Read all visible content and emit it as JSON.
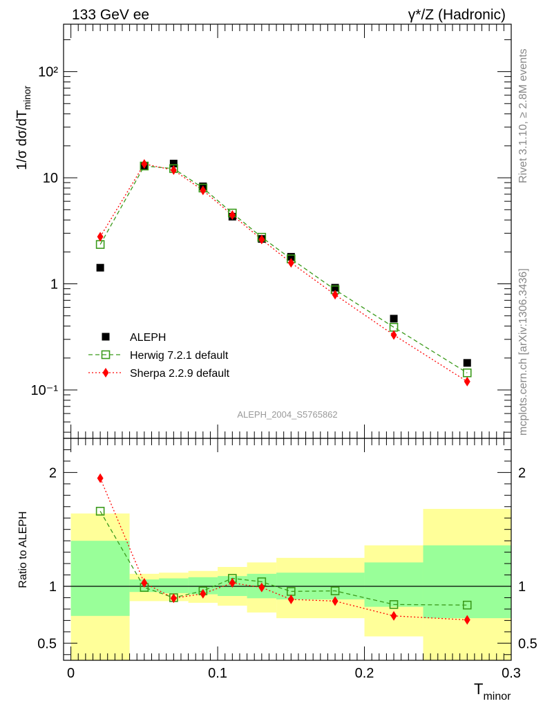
{
  "header": {
    "left": "133 GeV ee",
    "right": "γ*/Z (Hadronic)"
  },
  "side_text": {
    "rivet": "Rivet 3.1.10, ≥ 2.8M events",
    "mcplots": "mcplots.cern.ch [arXiv:1306.3436]"
  },
  "watermark": "ALEPH_2004_S5765862",
  "colors": {
    "data": "#000000",
    "herwig": "#3a9a1a",
    "sherpa": "#ff0000",
    "band_inner": "#99ff99",
    "band_outer": "#ffff99"
  },
  "chart_data": [
    {
      "type": "scatter",
      "panel": "main",
      "ylabel": "1/σ dσ/dT_minor",
      "yscale": "log",
      "ylim": [
        0.035,
        280
      ],
      "xlim": [
        -0.005,
        0.3
      ],
      "ytick_labels": [
        "10⁻¹",
        "1",
        "10",
        "10²"
      ],
      "legend_position": "bottom-left",
      "x": [
        0.02,
        0.05,
        0.07,
        0.09,
        0.11,
        0.13,
        0.15,
        0.18,
        0.22,
        0.27
      ],
      "series": [
        {
          "name": "ALEPH",
          "key": "data",
          "values": [
            1.42,
            13.0,
            13.6,
            8.3,
            4.3,
            2.65,
            1.8,
            0.92,
            0.47,
            0.18
          ]
        },
        {
          "name": "Herwig 7.2.1 default",
          "key": "herwig",
          "values": [
            2.35,
            12.9,
            12.2,
            8.0,
            4.65,
            2.75,
            1.72,
            0.88,
            0.39,
            0.145
          ]
        },
        {
          "name": "Sherpa 2.2.9 default",
          "key": "sherpa",
          "values": [
            2.78,
            13.5,
            11.8,
            7.6,
            4.45,
            2.62,
            1.58,
            0.79,
            0.33,
            0.12
          ]
        }
      ]
    },
    {
      "type": "line",
      "panel": "ratio",
      "ylabel": "Ratio to ALEPH",
      "xlabel": "T_minor",
      "ylim": [
        0.35,
        2.3
      ],
      "xlim": [
        -0.005,
        0.3
      ],
      "xtick_labels": [
        "0",
        "0.1",
        "0.2",
        "0.3"
      ],
      "ytick_labels": [
        "0.5",
        "1",
        "2"
      ],
      "x": [
        0.02,
        0.05,
        0.07,
        0.09,
        0.11,
        0.13,
        0.15,
        0.18,
        0.22,
        0.27
      ],
      "series": [
        {
          "key": "herwig",
          "values": [
            1.66,
            0.99,
            0.9,
            0.96,
            1.07,
            1.04,
            0.955,
            0.96,
            0.84,
            0.835
          ]
        },
        {
          "key": "sherpa",
          "values": [
            1.95,
            1.03,
            0.895,
            0.935,
            1.03,
            0.99,
            0.885,
            0.87,
            0.74,
            0.705
          ]
        }
      ],
      "bands": [
        {
          "x0": 0.0,
          "x1": 0.04,
          "inner": [
            0.74,
            1.4
          ],
          "outer": [
            0.35,
            1.64
          ]
        },
        {
          "x0": 0.04,
          "x1": 0.06,
          "inner": [
            0.95,
            1.06
          ],
          "outer": [
            0.87,
            1.11
          ]
        },
        {
          "x0": 0.06,
          "x1": 0.08,
          "inner": [
            0.94,
            1.07
          ],
          "outer": [
            0.87,
            1.12
          ]
        },
        {
          "x0": 0.08,
          "x1": 0.1,
          "inner": [
            0.93,
            1.08
          ],
          "outer": [
            0.855,
            1.135
          ]
        },
        {
          "x0": 0.1,
          "x1": 0.12,
          "inner": [
            0.915,
            1.09
          ],
          "outer": [
            0.83,
            1.17
          ]
        },
        {
          "x0": 0.12,
          "x1": 0.14,
          "inner": [
            0.895,
            1.11
          ],
          "outer": [
            0.77,
            1.21
          ]
        },
        {
          "x0": 0.14,
          "x1": 0.2,
          "inner": [
            0.885,
            1.12
          ],
          "outer": [
            0.72,
            1.25
          ]
        },
        {
          "x0": 0.2,
          "x1": 0.24,
          "inner": [
            0.82,
            1.21
          ],
          "outer": [
            0.56,
            1.36
          ]
        },
        {
          "x0": 0.24,
          "x1": 0.3,
          "inner": [
            0.72,
            1.36
          ],
          "outer": [
            0.35,
            1.68
          ]
        }
      ]
    }
  ]
}
